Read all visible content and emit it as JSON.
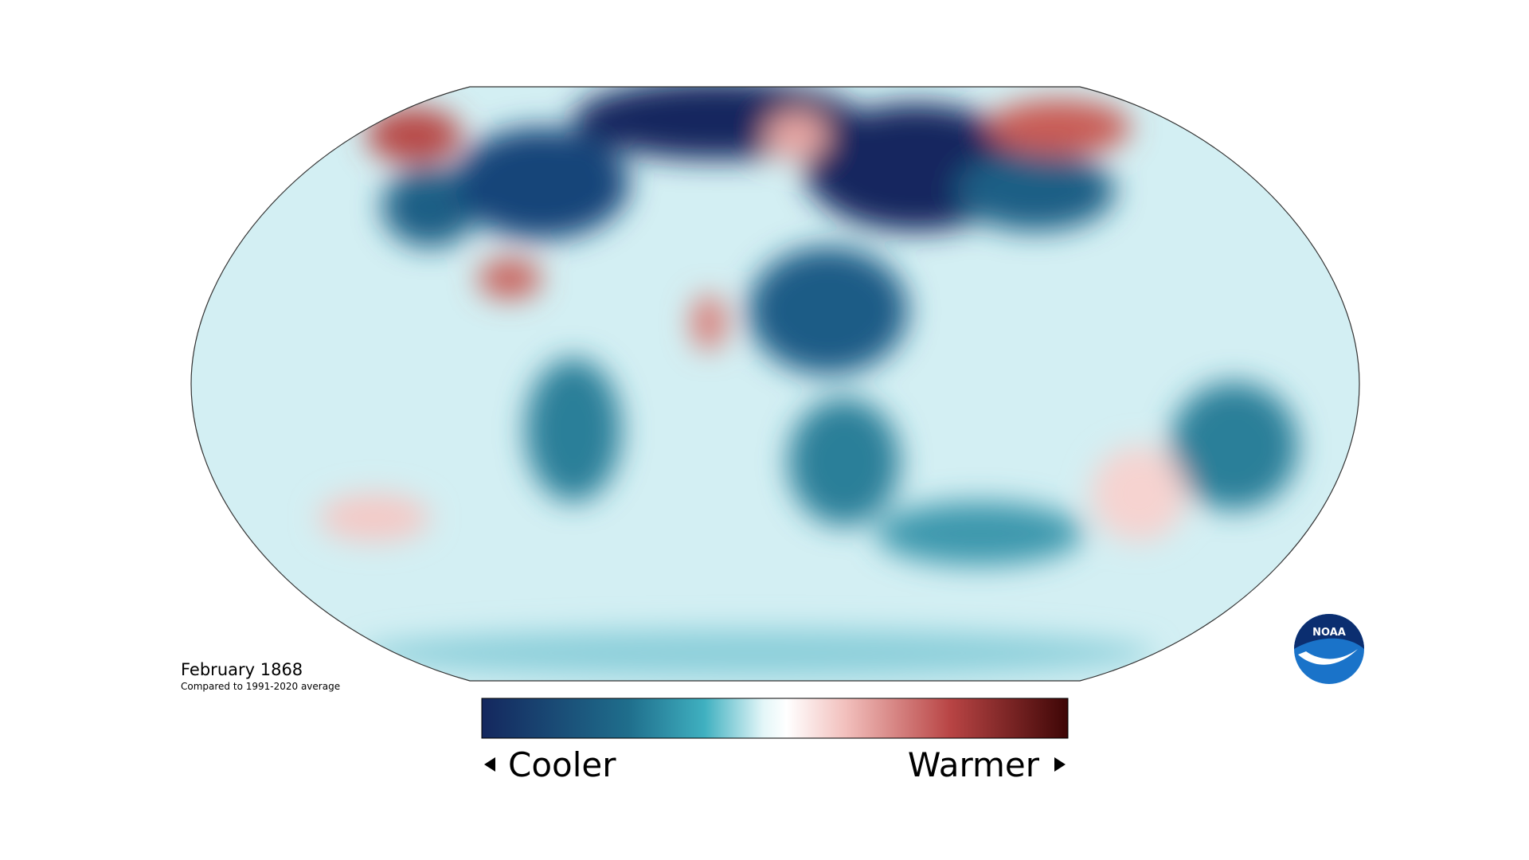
{
  "map": {
    "title": "February 1868",
    "subtitle": "Compared to 1991-2020 average",
    "legend": {
      "low": "Cooler",
      "high": "Warmer"
    },
    "logo": "NOAA"
  }
}
